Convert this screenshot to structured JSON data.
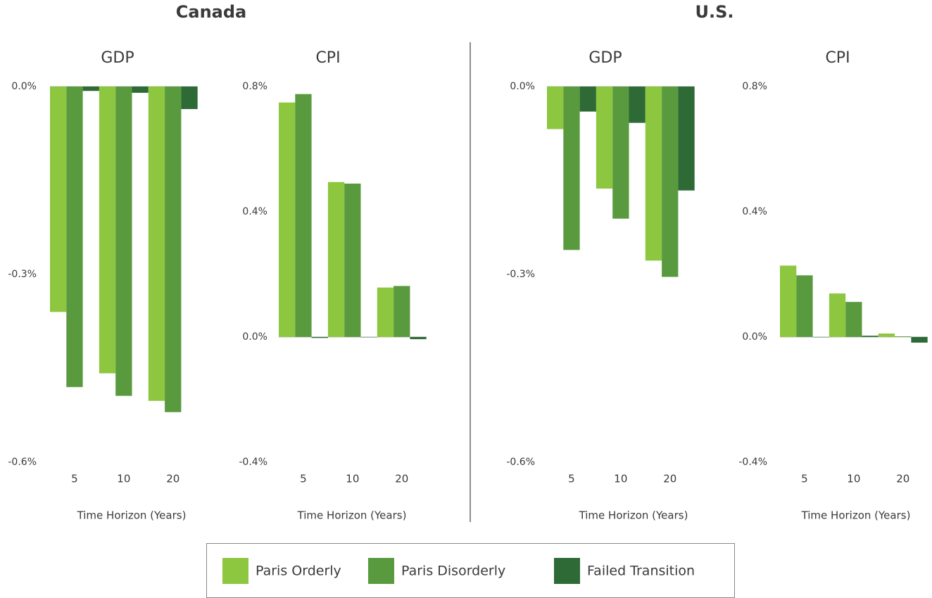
{
  "headings": [
    "Canada",
    "U.S."
  ],
  "chart_data": [
    {
      "type": "bar",
      "title": "GDP",
      "x_label": "Time Horizon (Years)",
      "categories": [
        "5",
        "10",
        "20"
      ],
      "series": [
        {
          "name": "Paris Orderly",
          "color": "#8dc63f",
          "values": [
            -0.36,
            -0.458,
            -0.502
          ]
        },
        {
          "name": "Paris Disorderly",
          "color": "#5a9a3f",
          "values": [
            -0.48,
            -0.494,
            -0.52
          ]
        },
        {
          "name": "Failed Transition",
          "color": "#2d6a35",
          "values": [
            -0.007,
            -0.01,
            -0.036
          ]
        }
      ],
      "ylim": [
        -0.6,
        0
      ],
      "yticks": [
        {
          "value": -0.6,
          "label": "-0.6%"
        },
        {
          "value": -0.3,
          "label": "-0.3%"
        },
        {
          "value": 0,
          "label": "0.0%"
        }
      ]
    },
    {
      "type": "bar",
      "title": "CPI",
      "x_label": "Time Horizon (Years)",
      "categories": [
        "5",
        "10",
        "20"
      ],
      "series": [
        {
          "name": "Paris Orderly",
          "color": "#8dc63f",
          "values": [
            0.749,
            0.495,
            0.158
          ]
        },
        {
          "name": "Paris Disorderly",
          "color": "#5a9a3f",
          "values": [
            0.776,
            0.49,
            0.163
          ]
        },
        {
          "name": "Failed Transition",
          "color": "#2d6a35",
          "values": [
            -0.003,
            -0.001,
            -0.007
          ]
        }
      ],
      "ylim": [
        -0.4,
        0.8
      ],
      "yticks": [
        {
          "value": -0.4,
          "label": "-0.4%"
        },
        {
          "value": 0,
          "label": "0.0%"
        },
        {
          "value": 0.4,
          "label": "0.4%"
        },
        {
          "value": 0.8,
          "label": "0.8%"
        }
      ]
    },
    {
      "type": "bar",
      "title": "GDP",
      "x_label": "Time Horizon (Years)",
      "categories": [
        "5",
        "10",
        "20"
      ],
      "series": [
        {
          "name": "Paris Orderly",
          "color": "#8dc63f",
          "values": [
            -0.068,
            -0.163,
            -0.278
          ]
        },
        {
          "name": "Paris Disorderly",
          "color": "#5a9a3f",
          "values": [
            -0.261,
            -0.211,
            -0.304
          ]
        },
        {
          "name": "Failed Transition",
          "color": "#2d6a35",
          "values": [
            -0.04,
            -0.058,
            -0.166
          ]
        }
      ],
      "ylim": [
        -0.6,
        0
      ],
      "yticks": [
        {
          "value": -0.6,
          "label": "-0.6%"
        },
        {
          "value": -0.3,
          "label": "-0.3%"
        },
        {
          "value": 0,
          "label": "0.0%"
        }
      ]
    },
    {
      "type": "bar",
      "title": "CPI",
      "x_label": "Time Horizon (Years)",
      "categories": [
        "5",
        "10",
        "20"
      ],
      "series": [
        {
          "name": "Paris Orderly",
          "color": "#8dc63f",
          "values": [
            0.228,
            0.139,
            0.011
          ]
        },
        {
          "name": "Paris Disorderly",
          "color": "#5a9a3f",
          "values": [
            0.197,
            0.112,
            0.002
          ]
        },
        {
          "name": "Failed Transition",
          "color": "#2d6a35",
          "values": [
            0,
            0.004,
            -0.018
          ]
        }
      ],
      "ylim": [
        -0.4,
        0.8
      ],
      "yticks": [
        {
          "value": -0.4,
          "label": "-0.4%"
        },
        {
          "value": 0,
          "label": "0.0%"
        },
        {
          "value": 0.4,
          "label": "0.4%"
        },
        {
          "value": 0.8,
          "label": "0.8%"
        }
      ]
    }
  ]
}
